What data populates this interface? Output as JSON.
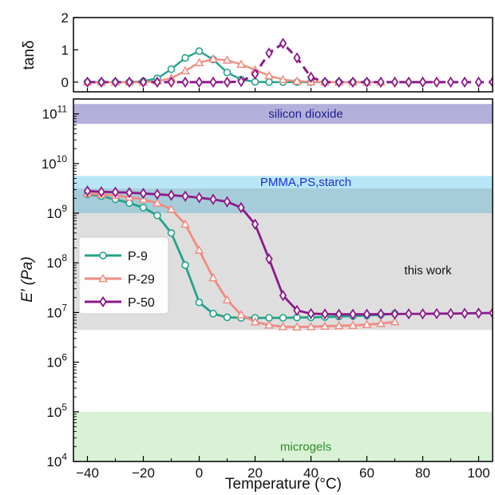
{
  "chart_data": [
    {
      "type": "line",
      "panel": "top",
      "ylabel": "tanδ",
      "xlim": [
        -45,
        105
      ],
      "ylim": [
        -0.3,
        2.0
      ],
      "yticks": [
        {
          "v": 0,
          "label": "0"
        },
        {
          "v": 1,
          "label": "1"
        },
        {
          "v": 2,
          "label": "2"
        }
      ],
      "series": [
        {
          "name": "P-9",
          "color": "#26a28a",
          "marker": "circle",
          "line": "solid",
          "x": [
            -40,
            -35,
            -30,
            -25,
            -20,
            -15,
            -10,
            -5,
            0,
            5,
            10,
            15,
            20,
            25,
            30,
            35,
            40,
            45,
            50,
            55,
            60
          ],
          "y": [
            0.0,
            0.0,
            0.0,
            0.0,
            0.03,
            0.12,
            0.4,
            0.75,
            0.96,
            0.7,
            0.3,
            0.08,
            0.01,
            0,
            0,
            0,
            0,
            0,
            0,
            0,
            0
          ]
        },
        {
          "name": "P-29",
          "color": "#f08c82",
          "marker": "triangle",
          "line": "solid",
          "x": [
            -40,
            -35,
            -30,
            -25,
            -20,
            -15,
            -10,
            -5,
            0,
            5,
            10,
            15,
            20,
            25,
            30,
            35,
            40,
            45,
            50,
            55,
            60,
            65
          ],
          "y": [
            0,
            0,
            0,
            0,
            0,
            0.03,
            0.12,
            0.35,
            0.6,
            0.72,
            0.68,
            0.55,
            0.38,
            0.2,
            0.08,
            0.03,
            0.01,
            0,
            0,
            0,
            0,
            0
          ]
        },
        {
          "name": "P-50",
          "color": "#8b1a8b",
          "marker": "diamond",
          "line": "dashed",
          "x": [
            -40,
            -35,
            -30,
            -25,
            -20,
            -15,
            -10,
            -5,
            0,
            5,
            10,
            15,
            20,
            25,
            30,
            35,
            40,
            45,
            50,
            55,
            60,
            65,
            70,
            75,
            80,
            85,
            90,
            95,
            100,
            105
          ],
          "y": [
            0,
            0,
            0,
            0,
            0,
            0,
            0,
            0,
            0,
            0,
            0,
            0.02,
            0.25,
            0.9,
            1.2,
            0.75,
            0.15,
            0,
            0,
            0,
            0,
            0,
            0,
            0,
            0,
            0,
            0,
            0,
            0,
            0
          ]
        }
      ]
    },
    {
      "type": "line",
      "panel": "bottom",
      "xlabel": "Temperature (°C)",
      "ylabel": "E′ (Pa)",
      "xlim": [
        -45,
        105
      ],
      "ylim": [
        4,
        11.3
      ],
      "yscale": "log",
      "xticks": [
        {
          "v": -40,
          "label": "−40"
        },
        {
          "v": -20,
          "label": "−20"
        },
        {
          "v": 0,
          "label": "0"
        },
        {
          "v": 20,
          "label": "20"
        },
        {
          "v": 40,
          "label": "40"
        },
        {
          "v": 60,
          "label": "60"
        },
        {
          "v": 80,
          "label": "80"
        },
        {
          "v": 100,
          "label": "100"
        }
      ],
      "yticks": [
        {
          "e": 4,
          "base": "10",
          "exp": "4"
        },
        {
          "e": 5,
          "base": "10",
          "exp": "5"
        },
        {
          "e": 6,
          "base": "10",
          "exp": "6"
        },
        {
          "e": 7,
          "base": "10",
          "exp": "7"
        },
        {
          "e": 8,
          "base": "10",
          "exp": "8"
        },
        {
          "e": 9,
          "base": "10",
          "exp": "9"
        },
        {
          "e": 10,
          "base": "10",
          "exp": "10"
        },
        {
          "e": 11,
          "base": "10",
          "exp": "11"
        }
      ],
      "bands": [
        {
          "label": "silicon dioxide",
          "from": 10.8,
          "to": 11.2,
          "fill": "#b4b0dc",
          "text_color": "#1d1d8a"
        },
        {
          "label": "PMMA,PS,starch",
          "from": 9.5,
          "to": 9.75,
          "fill": "#b9e6f7",
          "text_color": "#1c2fd6"
        },
        {
          "label": "",
          "from": 9.0,
          "to": 9.5,
          "fill": "#a6ccd9",
          "text_color": "#000000"
        },
        {
          "label": "this work",
          "from": 6.65,
          "to": 9.0,
          "fill": "#dedede",
          "text_color": "#111111"
        },
        {
          "label": "microgels",
          "from": 4.0,
          "to": 5.0,
          "fill": "#d9f2d6",
          "text_color": "#2f8a2a"
        }
      ],
      "series": [
        {
          "name": "P-9",
          "color": "#26a28a",
          "marker": "circle",
          "line": "solid",
          "x": [
            -40,
            -35,
            -30,
            -25,
            -20,
            -15,
            -10,
            -5,
            0,
            5,
            10,
            15,
            20,
            25,
            30,
            35,
            40,
            45,
            50,
            55,
            60,
            65,
            70
          ],
          "y": [
            2400000000.0,
            2200000000.0,
            1900000000.0,
            1600000000.0,
            1300000000.0,
            900000000.0,
            400000000.0,
            90000000.0,
            16000000.0,
            9500000.0,
            8000000.0,
            7800000.0,
            7800000.0,
            7800000.0,
            7800000.0,
            7900000.0,
            8000000.0,
            8100000.0,
            8300000.0,
            8500000.0,
            8700000.0,
            9000000.0,
            9500000.0
          ]
        },
        {
          "name": "P-29",
          "color": "#f08c82",
          "marker": "triangle",
          "line": "solid",
          "x": [
            -40,
            -35,
            -30,
            -25,
            -20,
            -15,
            -10,
            -5,
            0,
            5,
            10,
            15,
            20,
            25,
            30,
            35,
            40,
            45,
            50,
            55,
            60,
            65,
            70
          ],
          "y": [
            2500000000.0,
            2400000000.0,
            2300000000.0,
            2100000000.0,
            1900000000.0,
            1600000000.0,
            1200000000.0,
            600000000.0,
            180000000.0,
            50000000.0,
            18000000.0,
            9000000.0,
            6500000.0,
            5600000.0,
            5200000.0,
            5100000.0,
            5200000.0,
            5300000.0,
            5400000.0,
            5500000.0,
            5700000.0,
            6000000.0,
            6500000.0
          ]
        },
        {
          "name": "P-50",
          "color": "#8b1a8b",
          "marker": "diamond",
          "line": "solid",
          "x": [
            -40,
            -35,
            -30,
            -25,
            -20,
            -15,
            -10,
            -5,
            0,
            5,
            10,
            15,
            20,
            25,
            30,
            35,
            40,
            45,
            50,
            55,
            60,
            65,
            70,
            75,
            80,
            85,
            90,
            95,
            100,
            105
          ],
          "y": [
            2800000000.0,
            2700000000.0,
            2650000000.0,
            2600000000.0,
            2500000000.0,
            2400000000.0,
            2300000000.0,
            2200000000.0,
            2050000000.0,
            1900000000.0,
            1700000000.0,
            1300000000.0,
            600000000.0,
            120000000.0,
            22000000.0,
            11000000.0,
            9500000.0,
            9300000.0,
            9200000.0,
            9200000.0,
            9200000.0,
            9300000.0,
            9300000.0,
            9400000.0,
            9400000.0,
            9500000.0,
            9500000.0,
            9600000.0,
            9700000.0,
            9800000.0
          ]
        }
      ],
      "legend": {
        "placement": "left-middle",
        "entries": [
          "P-9",
          "P-29",
          "P-50"
        ]
      }
    }
  ]
}
